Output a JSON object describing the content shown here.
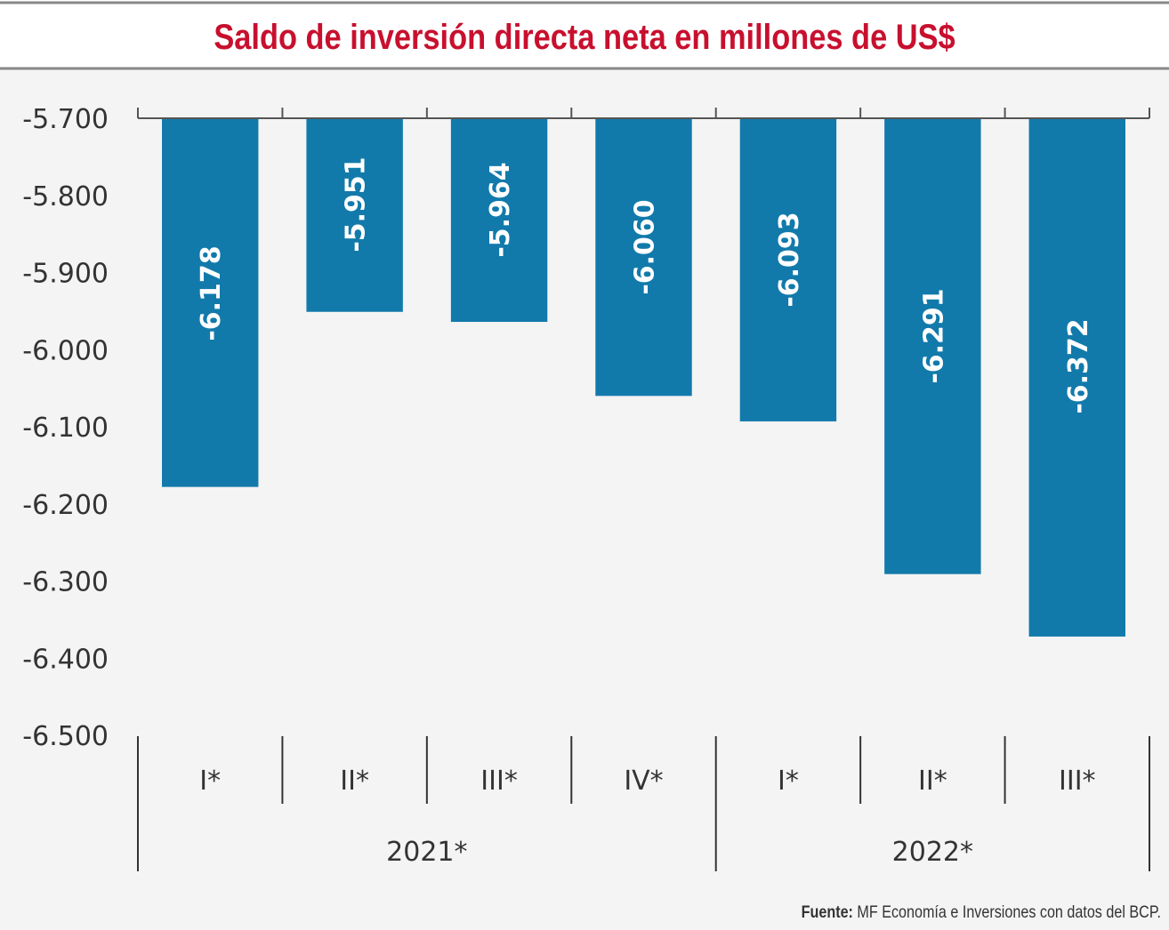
{
  "chart_data": {
    "type": "bar",
    "title": "Saldo de inversión directa neta en millones de US$",
    "categories": [
      "I*",
      "II*",
      "III*",
      "IV*",
      "I*",
      "II*",
      "III*"
    ],
    "groups": [
      {
        "label": "2021*",
        "count": 4
      },
      {
        "label": "2022*",
        "count": 3
      }
    ],
    "values": [
      -6178,
      -5951,
      -5964,
      -6060,
      -6093,
      -6291,
      -6372
    ],
    "data_labels": [
      "-6.178",
      "-5.951",
      "-5.964",
      "-6.060",
      "-6.093",
      "-6.291",
      "-6.372"
    ],
    "yticks": [
      -5700,
      -5800,
      -5900,
      -6000,
      -6100,
      -6200,
      -6300,
      -6400,
      -6500
    ],
    "ytick_labels": [
      "-5.700",
      "-5.800",
      "-5.900",
      "-6.000",
      "-6.100",
      "-6.200",
      "-6.300",
      "-6.400",
      "-6.500"
    ],
    "ylim": [
      -6500,
      -5700
    ],
    "xlabel": "",
    "ylabel": "",
    "grid": false,
    "colors": {
      "bar": "#127aab",
      "title": "#c8102e",
      "background": "#f4f4f4"
    }
  },
  "source": {
    "label": "Fuente:",
    "text": " MF Economía e Inversiones con datos del BCP."
  }
}
